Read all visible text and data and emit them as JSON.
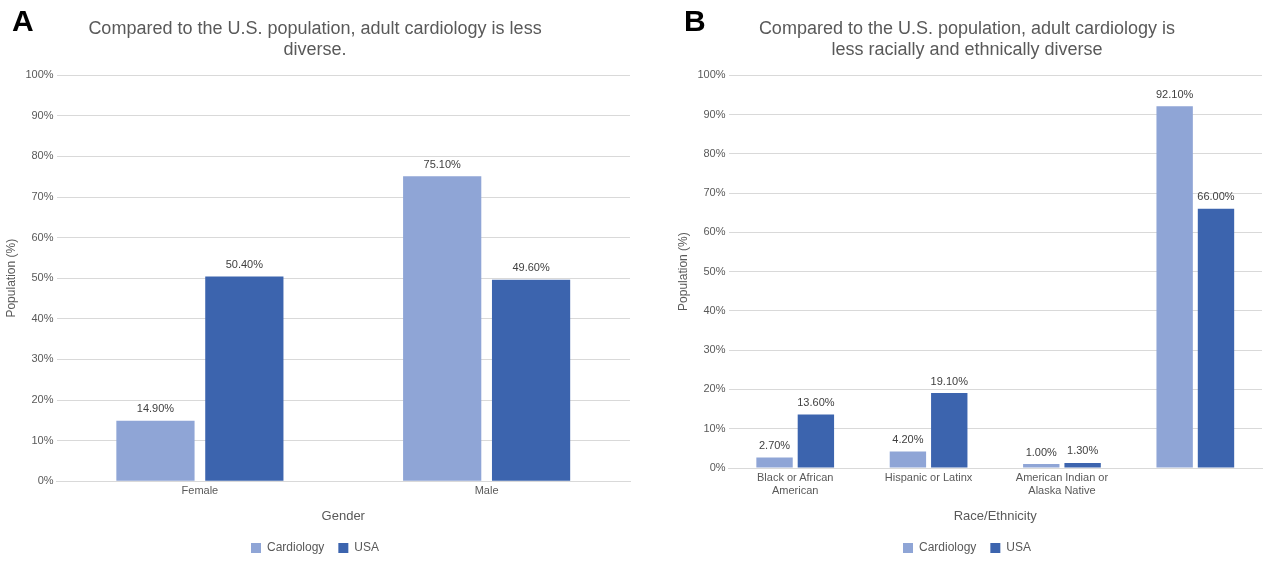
{
  "chart_data": [
    {
      "type": "bar",
      "title": "Compared to the U.S. population, adult cardiology is less diverse.",
      "xlabel": "Gender",
      "ylabel": "Population (%)",
      "annotations": [
        "A"
      ],
      "categories": [
        "Female",
        "Male"
      ],
      "series": [
        {
          "name": "Cardiology",
          "color": "#8fa5d6",
          "values": [
            14.9,
            75.1
          ],
          "value_labels": [
            "14.90%",
            "75.10%"
          ]
        },
        {
          "name": "USA",
          "color": "#3c64ae",
          "values": [
            50.4,
            49.6
          ],
          "value_labels": [
            "50.40%",
            "49.60%"
          ]
        }
      ],
      "ylim": [
        0,
        100
      ],
      "yticks": [
        {
          "value": 0,
          "label": "0%"
        },
        {
          "value": 10,
          "label": "10%"
        },
        {
          "value": 20,
          "label": "20%"
        },
        {
          "value": 30,
          "label": "30%"
        },
        {
          "value": 40,
          "label": "40%"
        },
        {
          "value": 50,
          "label": "50%"
        },
        {
          "value": 60,
          "label": "60%"
        },
        {
          "value": 70,
          "label": "70%"
        },
        {
          "value": 80,
          "label": "80%"
        },
        {
          "value": 90,
          "label": "90%"
        },
        {
          "value": 100,
          "label": "100%"
        }
      ],
      "grid": "y",
      "legend": "bottom"
    },
    {
      "type": "bar",
      "title": "Compared to the U.S. population, adult cardiology is less racially and ethnically diverse",
      "xlabel": "Race/Ethnicity",
      "ylabel": "Population (%)",
      "annotations": [
        "B"
      ],
      "categories": [
        "Black or African American",
        "Hispanic or Latinx",
        "American Indian or Alaska Native",
        null
      ],
      "series": [
        {
          "name": "Cardiology",
          "color": "#8fa5d6",
          "values": [
            2.7,
            4.2,
            1.0,
            92.1
          ],
          "value_labels": [
            "2.70%",
            "4.20%",
            "1.00%",
            "92.10%"
          ]
        },
        {
          "name": "USA",
          "color": "#3c64ae",
          "values": [
            13.6,
            19.1,
            1.3,
            66.0
          ],
          "value_labels": [
            "13.60%",
            "19.10%",
            "1.30%",
            "66.00%"
          ]
        }
      ],
      "ylim": [
        0,
        100
      ],
      "yticks": [
        {
          "value": 0,
          "label": "0%"
        },
        {
          "value": 10,
          "label": "10%"
        },
        {
          "value": 20,
          "label": "20%"
        },
        {
          "value": 30,
          "label": "30%"
        },
        {
          "value": 40,
          "label": "40%"
        },
        {
          "value": 50,
          "label": "50%"
        },
        {
          "value": 60,
          "label": "60%"
        },
        {
          "value": 70,
          "label": "70%"
        },
        {
          "value": 80,
          "label": "80%"
        },
        {
          "value": 90,
          "label": "90%"
        },
        {
          "value": 100,
          "label": "100%"
        }
      ],
      "grid": "y",
      "legend": "bottom"
    }
  ]
}
